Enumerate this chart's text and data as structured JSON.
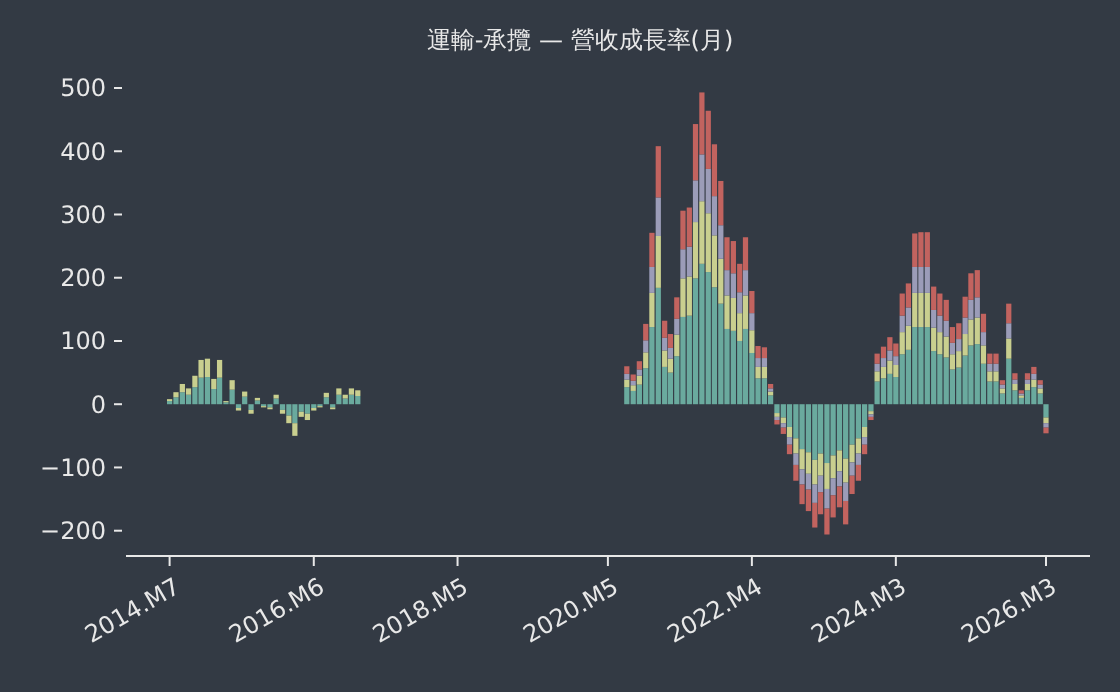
{
  "chart_data": {
    "type": "bar",
    "stacked": true,
    "title": "運輸-承攬 — 營收成長率(月)",
    "x": [
      "2014-07",
      "2014-08",
      "2014-09",
      "2014-10",
      "2014-11",
      "2014-12",
      "2015-01",
      "2015-02",
      "2015-03",
      "2015-04",
      "2015-05",
      "2015-06",
      "2015-07",
      "2015-08",
      "2015-09",
      "2015-10",
      "2015-11",
      "2015-12",
      "2016-01",
      "2016-02",
      "2016-03",
      "2016-04",
      "2016-05",
      "2016-06",
      "2016-07",
      "2016-08",
      "2016-09",
      "2016-10",
      "2016-11",
      "2016-12",
      "2017-01",
      "2020-08",
      "2020-09",
      "2020-10",
      "2020-11",
      "2020-12",
      "2021-01",
      "2021-02",
      "2021-03",
      "2021-04",
      "2021-05",
      "2021-06",
      "2021-07",
      "2021-08",
      "2021-09",
      "2021-10",
      "2021-11",
      "2021-12",
      "2022-01",
      "2022-02",
      "2022-03",
      "2022-04",
      "2022-05",
      "2022-06",
      "2022-07",
      "2022-08",
      "2022-09",
      "2022-10",
      "2022-11",
      "2022-12",
      "2023-01",
      "2023-02",
      "2023-03",
      "2023-04",
      "2023-05",
      "2023-06",
      "2023-07",
      "2023-08",
      "2023-09",
      "2023-10",
      "2023-11",
      "2023-12",
      "2024-01",
      "2024-02",
      "2024-03",
      "2024-04",
      "2024-05",
      "2024-06",
      "2024-07",
      "2024-08",
      "2024-09",
      "2024-10",
      "2024-11",
      "2024-12",
      "2025-01",
      "2025-02",
      "2025-03",
      "2025-04",
      "2025-05",
      "2025-06",
      "2025-07",
      "2025-08",
      "2025-09",
      "2025-10",
      "2025-11",
      "2025-12",
      "2026-01",
      "2026-02",
      "2026-03"
    ],
    "series": [
      {
        "color": "#6aaa9e",
        "values": [
          5,
          11,
          19,
          15,
          27,
          42,
          43,
          24,
          42,
          3,
          23,
          -6,
          12,
          -9,
          6,
          -3,
          -5,
          9,
          -9,
          -18,
          -30,
          -12,
          -15,
          -6,
          -3,
          11,
          -5,
          15,
          9,
          15,
          13,
          27,
          21,
          31,
          57,
          122,
          184,
          59,
          50,
          76,
          138,
          140,
          199,
          222,
          209,
          185,
          159,
          119,
          116,
          100,
          119,
          81,
          41,
          41,
          14,
          -14,
          -21,
          -36,
          -54,
          -71,
          -76,
          -88,
          -78,
          -93,
          -81,
          -73,
          -86,
          -64,
          -54,
          -36,
          -11,
          36,
          41,
          48,
          43,
          79,
          86,
          122,
          122,
          122,
          84,
          79,
          74,
          55,
          58,
          77,
          93,
          95,
          64,
          36,
          36,
          17,
          72,
          22,
          10,
          22,
          27,
          17,
          -21
        ]
      },
      {
        "color": "#c9cf8f",
        "values": [
          3,
          8,
          13,
          10,
          18,
          28,
          29,
          16,
          28,
          2,
          15,
          -4,
          8,
          -6,
          4,
          -2,
          -3,
          6,
          -6,
          -12,
          -20,
          -8,
          -10,
          -4,
          -2,
          7,
          -3,
          10,
          6,
          10,
          9,
          12,
          9,
          14,
          25,
          54,
          82,
          26,
          22,
          34,
          61,
          62,
          89,
          99,
          93,
          82,
          71,
          53,
          52,
          44,
          53,
          36,
          18,
          18,
          6,
          -6,
          -9,
          -16,
          -24,
          -32,
          -34,
          -39,
          -35,
          -41,
          -36,
          -33,
          -38,
          -28,
          -24,
          -16,
          -5,
          16,
          18,
          21,
          19,
          35,
          38,
          54,
          54,
          54,
          37,
          35,
          33,
          24,
          26,
          34,
          41,
          42,
          29,
          16,
          16,
          8,
          32,
          10,
          4,
          10,
          12,
          8,
          -9
        ]
      },
      {
        "color": "#9b9cb8",
        "values": [
          0,
          0,
          0,
          0,
          0,
          0,
          0,
          0,
          0,
          0,
          0,
          0,
          0,
          0,
          0,
          0,
          0,
          0,
          0,
          0,
          0,
          0,
          0,
          0,
          0,
          0,
          0,
          0,
          0,
          0,
          0,
          9,
          7,
          10,
          19,
          41,
          61,
          20,
          17,
          25,
          46,
          47,
          66,
          74,
          70,
          62,
          53,
          40,
          39,
          33,
          40,
          27,
          14,
          14,
          5,
          -5,
          -7,
          -12,
          -18,
          -24,
          -25,
          -29,
          -26,
          -31,
          -27,
          -24,
          -29,
          -21,
          -18,
          -12,
          -4,
          12,
          14,
          16,
          14,
          26,
          29,
          41,
          41,
          41,
          28,
          26,
          25,
          18,
          19,
          26,
          31,
          32,
          21,
          12,
          12,
          6,
          24,
          7,
          3,
          7,
          9,
          6,
          -7
        ]
      },
      {
        "color": "#c2635f",
        "values": [
          0,
          0,
          0,
          0,
          0,
          0,
          0,
          0,
          0,
          0,
          0,
          0,
          0,
          0,
          0,
          0,
          0,
          0,
          0,
          0,
          0,
          0,
          0,
          0,
          0,
          0,
          0,
          0,
          0,
          0,
          0,
          12,
          10,
          13,
          26,
          54,
          81,
          27,
          22,
          34,
          61,
          62,
          89,
          98,
          92,
          82,
          70,
          52,
          51,
          45,
          52,
          35,
          19,
          17,
          7,
          -7,
          -10,
          -15,
          -25,
          -31,
          -34,
          -39,
          -35,
          -41,
          -35,
          -33,
          -37,
          -29,
          -25,
          -15,
          -5,
          16,
          18,
          21,
          20,
          35,
          38,
          53,
          55,
          55,
          37,
          35,
          33,
          25,
          25,
          33,
          42,
          43,
          29,
          16,
          16,
          7,
          31,
          10,
          5,
          10,
          11,
          7,
          -9
        ]
      }
    ],
    "xlim": [
      "2013-12",
      "2026-10"
    ],
    "xticks": [
      {
        "value": "2014-07",
        "label": "2014.M7"
      },
      {
        "value": "2016-06",
        "label": "2016.M6"
      },
      {
        "value": "2018-05",
        "label": "2018.M5"
      },
      {
        "value": "2020-05",
        "label": "2020.M5"
      },
      {
        "value": "2022-04",
        "label": "2022.M4"
      },
      {
        "value": "2024-03",
        "label": "2024.M3"
      },
      {
        "value": "2026-03",
        "label": "2026.M3"
      }
    ],
    "ylim": [
      -240,
      500
    ],
    "yticks": [
      {
        "value": -200,
        "label": "−200"
      },
      {
        "value": -100,
        "label": "−100"
      },
      0,
      100,
      200,
      300,
      400,
      500
    ]
  }
}
